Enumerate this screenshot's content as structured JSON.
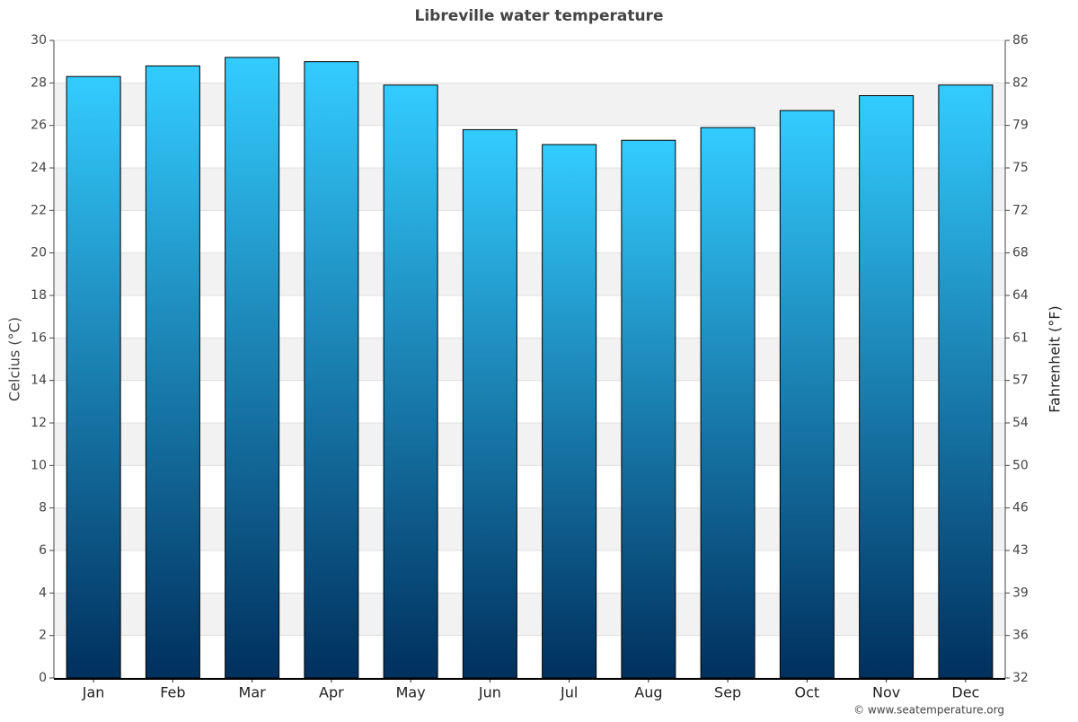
{
  "chart_data": {
    "type": "bar",
    "title": "Libreville water temperature",
    "y_label": "Celcius (°C)",
    "y2_label": "Fahrenheit (°F)",
    "source": "© www.seatemperature.org",
    "categories": [
      "Jan",
      "Feb",
      "Mar",
      "Apr",
      "May",
      "Jun",
      "Jul",
      "Aug",
      "Sep",
      "Oct",
      "Nov",
      "Dec"
    ],
    "values": [
      28.3,
      28.8,
      29.2,
      29.0,
      27.9,
      25.8,
      25.1,
      25.3,
      25.9,
      26.7,
      27.4,
      27.9
    ],
    "gradient": [
      "#33ccff",
      "#00305e"
    ],
    "ylim": [
      0,
      30
    ],
    "yticks": [
      0,
      2,
      4,
      6,
      8,
      10,
      12,
      14,
      16,
      18,
      20,
      22,
      24,
      26,
      28,
      30
    ],
    "y2lim": [
      32,
      86
    ],
    "y2ticks": [
      32,
      {
        "value": 35.6,
        "label": "36"
      },
      {
        "value": 39.2,
        "label": "39"
      },
      {
        "value": 42.8,
        "label": "43"
      },
      {
        "value": 46.4,
        "label": "46"
      },
      50,
      {
        "value": 53.6,
        "label": "54"
      },
      {
        "value": 57.2,
        "label": "57"
      },
      {
        "value": 60.8,
        "label": "61"
      },
      {
        "value": 64.4,
        "label": "64"
      },
      68,
      {
        "value": 71.6,
        "label": "72"
      },
      {
        "value": 75.2,
        "label": "75"
      },
      {
        "value": 78.8,
        "label": "79"
      },
      {
        "value": 82.4,
        "label": "82"
      },
      86
    ],
    "grid": true
  }
}
